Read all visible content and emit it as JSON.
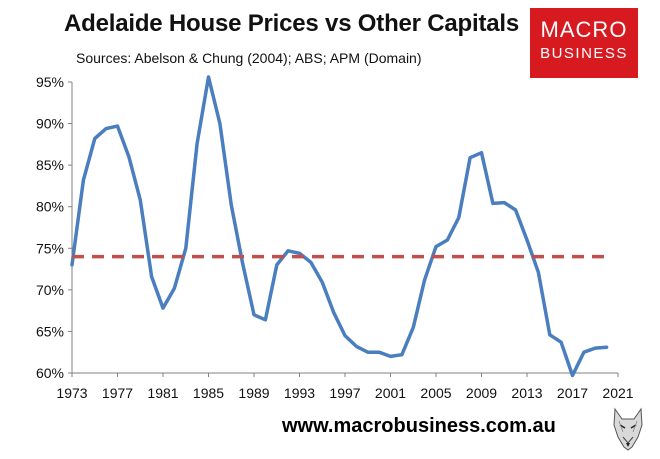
{
  "header": {
    "title": "Adelaide House Prices vs Other Capitals",
    "subtitle": "Sources: Abelson & Chung (2004); ABS; APM (Domain)"
  },
  "logo": {
    "line1": "MACRO",
    "line2": "BUSINESS",
    "background": "#d71920"
  },
  "footer": {
    "url": "www.macrobusiness.com.au",
    "mascot_icon": "wolf-head-icon"
  },
  "chart_data": {
    "type": "line",
    "title": "Adelaide House Prices vs Other Capitals",
    "xlabel": "",
    "ylabel": "",
    "xlim": [
      1973,
      2021
    ],
    "ylim": [
      60,
      95
    ],
    "x_ticks": [
      "1973",
      "1977",
      "1981",
      "1985",
      "1989",
      "1993",
      "1997",
      "2001",
      "2005",
      "2009",
      "2013",
      "2017",
      "2021"
    ],
    "y_ticks": [
      "60%",
      "65%",
      "70%",
      "75%",
      "80%",
      "85%",
      "90%",
      "95%"
    ],
    "grid": false,
    "legend": "none",
    "series": [
      {
        "color": "#4a7ebf",
        "style": "solid",
        "x": [
          1973,
          1974,
          1975,
          1976,
          1977,
          1978,
          1979,
          1980,
          1981,
          1982,
          1983,
          1984,
          1985,
          1986,
          1987,
          1988,
          1989,
          1990,
          1991,
          1992,
          1993,
          1994,
          1995,
          1996,
          1997,
          1998,
          1999,
          2000,
          2001,
          2002,
          2003,
          2004,
          2005,
          2006,
          2007,
          2008,
          2009,
          2010,
          2011,
          2012,
          2013,
          2014,
          2015,
          2016,
          2017,
          2018,
          2019,
          2020
        ],
        "y": [
          73.0,
          83.2,
          88.2,
          89.4,
          89.7,
          86.0,
          80.8,
          71.6,
          67.8,
          70.2,
          75.0,
          87.6,
          95.6,
          90.0,
          80.2,
          73.2,
          67.0,
          66.4,
          73.0,
          74.7,
          74.4,
          73.3,
          70.9,
          67.3,
          64.5,
          63.2,
          62.5,
          62.5,
          62.0,
          62.2,
          65.5,
          71.2,
          75.2,
          76.0,
          78.7,
          85.9,
          86.5,
          80.4,
          80.5,
          79.6,
          76.0,
          72.1,
          64.6,
          63.7,
          59.7,
          62.5,
          63.0,
          63.1
        ]
      },
      {
        "color": "#c0504d",
        "style": "dashed",
        "x": [
          1973,
          2020
        ],
        "y": [
          74.0,
          74.0
        ]
      }
    ]
  }
}
